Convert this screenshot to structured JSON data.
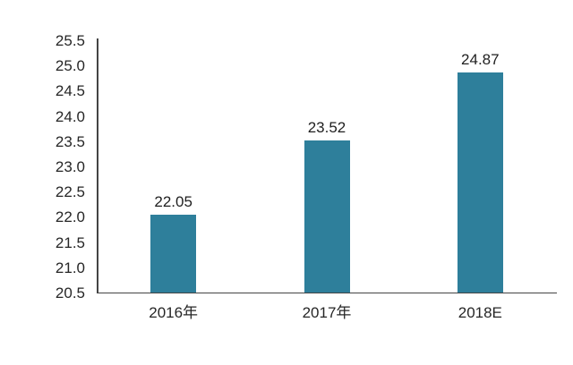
{
  "chart_data": {
    "type": "bar",
    "categories": [
      "2016年",
      "2017年",
      "2018E"
    ],
    "values": [
      22.05,
      23.52,
      24.87
    ],
    "value_labels": [
      "22.05",
      "23.52",
      "24.87"
    ],
    "ylim": [
      20.5,
      25.5
    ],
    "ytick_step": 0.5,
    "ytick_labels": [
      "25.5",
      "25.0",
      "24.5",
      "24.0",
      "23.5",
      "23.0",
      "22.5",
      "22.0",
      "21.5",
      "21.0",
      "20.5"
    ],
    "grid": false,
    "legend_position": "none",
    "bar_color": "#2e7f9b",
    "axis_color": "#444444",
    "label_color": "#262626"
  }
}
